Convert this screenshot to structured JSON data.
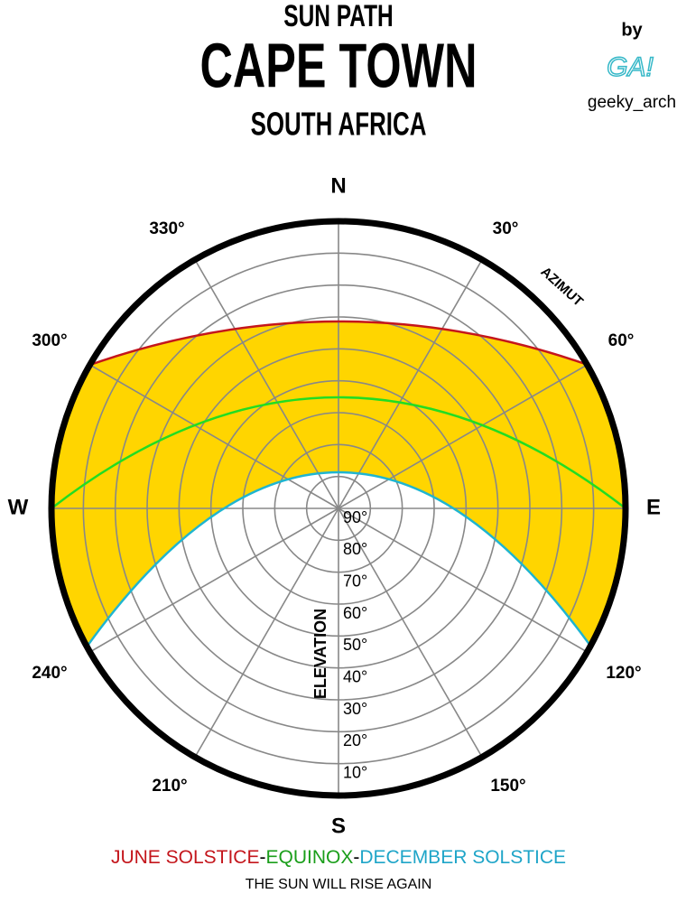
{
  "header": {
    "line1": "SUN PATH",
    "title": "CAPE TOWN",
    "line3": "SOUTH AFRICA"
  },
  "credit": {
    "by": "by",
    "logo": "GA!",
    "handle": "geeky_arch"
  },
  "compass": {
    "north": "N",
    "east": "E",
    "south": "S",
    "west": "W",
    "azimuths": [
      "30°",
      "60°",
      "120°",
      "150°",
      "210°",
      "240°",
      "300°",
      "330°"
    ],
    "azimuth_title": "AZIMUT"
  },
  "elevation": {
    "title": "ELEVATION",
    "labels": [
      "90°",
      "80°",
      "70°",
      "60°",
      "50°",
      "40°",
      "30°",
      "20°",
      "10°"
    ]
  },
  "legend": {
    "june": "JUNE SOLSTICE",
    "separator": "-",
    "equinox": "EQUINOX",
    "december": "DECEMBER SOLSTICE"
  },
  "footer": "THE SUN WILL RISE AGAIN"
}
